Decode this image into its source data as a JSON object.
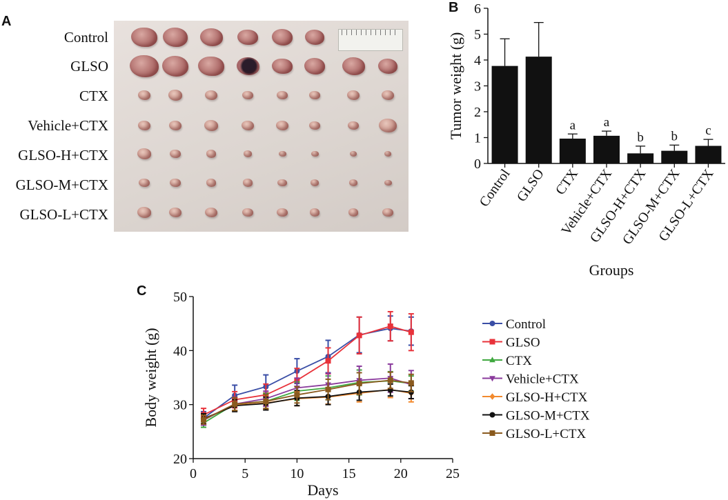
{
  "panels": {
    "a": "A",
    "b": "B",
    "c": "C"
  },
  "photo": {
    "row_labels": [
      "Control",
      "GLSO",
      "CTX",
      "Vehicle+CTX",
      "GLSO-H+CTX",
      "GLSO-M+CTX",
      "GLSO-L+CTX"
    ]
  },
  "chart_data": [
    {
      "type": "bar",
      "categories": [
        "Control",
        "GLSO",
        "CTX",
        "Vehicle+CTX",
        "GLSO-H+CTX",
        "GLSO-M+CTX",
        "GLSO-L+CTX"
      ],
      "values": [
        3.77,
        4.13,
        0.96,
        1.07,
        0.39,
        0.49,
        0.68
      ],
      "errors": [
        1.05,
        1.32,
        0.18,
        0.18,
        0.28,
        0.22,
        0.25
      ],
      "annotations": [
        "",
        "",
        "a",
        "a",
        "b",
        "b",
        "c"
      ],
      "xlabel": "Groups",
      "ylabel": "Tumor weight (g)",
      "ylim": [
        0,
        6
      ],
      "yticks": [
        0,
        1,
        2,
        3,
        4,
        5,
        6
      ],
      "bar_color": "#111111",
      "grid": false
    },
    {
      "type": "line",
      "x": [
        1,
        4,
        7,
        10,
        13,
        16,
        19,
        21
      ],
      "xlabel": "Days",
      "ylabel": "Body weight (g)",
      "xlim": [
        0,
        25
      ],
      "ylim": [
        20,
        50
      ],
      "xticks": [
        0,
        5,
        10,
        15,
        20,
        25
      ],
      "yticks": [
        20,
        30,
        40,
        50
      ],
      "legend": "right",
      "grid": false,
      "series": [
        {
          "name": "Control",
          "color": "#3a4ea6",
          "marker": "circle",
          "values": [
            27.5,
            31.7,
            33.3,
            36.2,
            38.9,
            42.9,
            44.1,
            43.6
          ],
          "errors": [
            1.2,
            1.9,
            2.2,
            2.3,
            3.0,
            3.3,
            2.3,
            2.6
          ]
        },
        {
          "name": "GLSO",
          "color": "#e8323a",
          "marker": "square",
          "values": [
            28.1,
            30.9,
            31.8,
            34.5,
            38.1,
            42.8,
            44.5,
            43.4
          ],
          "errors": [
            1.2,
            1.5,
            2.0,
            2.2,
            2.4,
            3.4,
            2.7,
            3.4
          ]
        },
        {
          "name": "CTX",
          "color": "#3fa83f",
          "marker": "triangle-up",
          "values": [
            26.6,
            30.1,
            30.6,
            32.5,
            33.1,
            34.1,
            34.4,
            33.9
          ],
          "errors": [
            0.8,
            1.2,
            1.5,
            1.7,
            2.2,
            2.3,
            1.7,
            1.4
          ]
        },
        {
          "name": "Vehicle+CTX",
          "color": "#8a3a9c",
          "marker": "triangle-down",
          "values": [
            27.1,
            30.1,
            31.1,
            33.1,
            33.7,
            34.5,
            34.9,
            33.7
          ],
          "errors": [
            0.9,
            1.3,
            1.4,
            1.8,
            2.1,
            2.6,
            2.6,
            2.6
          ]
        },
        {
          "name": "GLSO-H+CTX",
          "color": "#f28a2e",
          "marker": "diamond",
          "values": [
            27.3,
            29.9,
            30.3,
            31.1,
            31.4,
            32.1,
            32.8,
            32.1
          ],
          "errors": [
            0.8,
            1.0,
            1.2,
            1.3,
            1.3,
            1.6,
            1.5,
            1.6
          ]
        },
        {
          "name": "GLSO-M+CTX",
          "color": "#111111",
          "marker": "circle",
          "values": [
            27.4,
            29.8,
            30.2,
            31.2,
            31.5,
            32.3,
            32.7,
            32.3
          ],
          "errors": [
            0.9,
            1.1,
            1.2,
            1.4,
            1.5,
            1.5,
            1.1,
            1.2
          ]
        },
        {
          "name": "GLSO-L+CTX",
          "color": "#8a5a1e",
          "marker": "square",
          "values": [
            27.2,
            30.1,
            30.6,
            31.8,
            32.8,
            33.9,
            34.5,
            34.0
          ],
          "errors": [
            0.8,
            1.2,
            1.3,
            1.5,
            1.9,
            2.0,
            1.5,
            1.6
          ]
        }
      ]
    }
  ]
}
